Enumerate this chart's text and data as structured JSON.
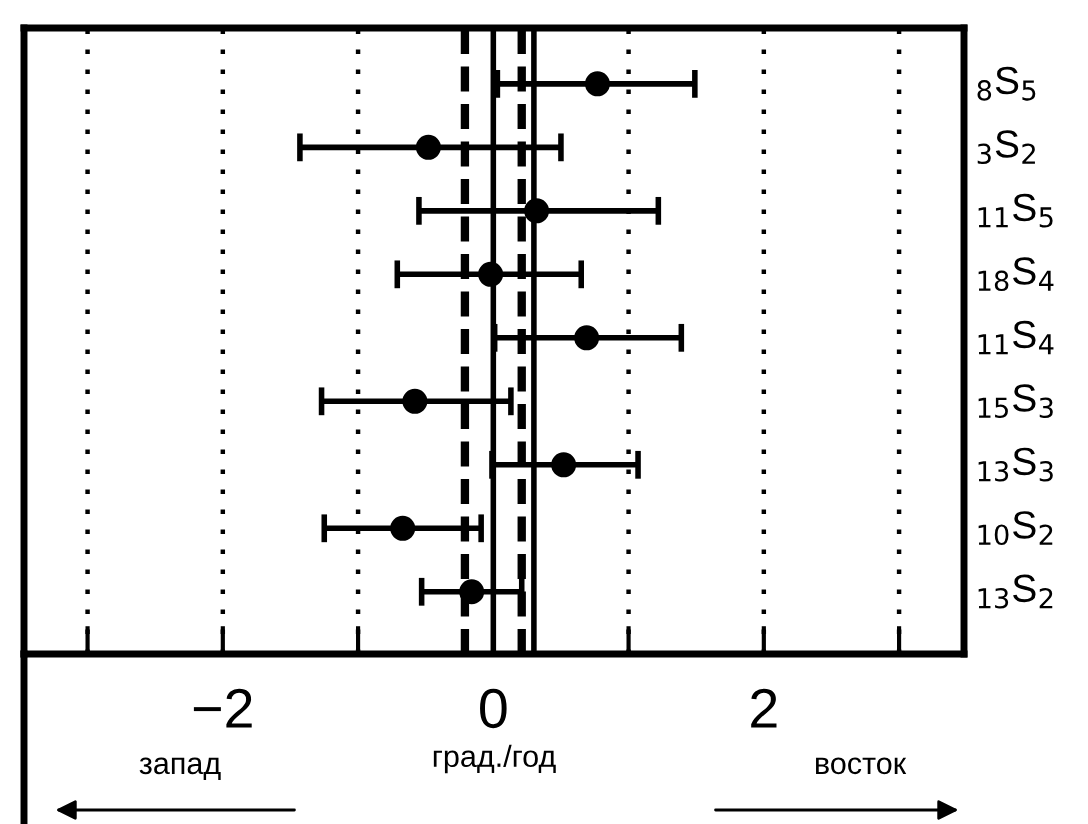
{
  "chart_data": {
    "type": "scatter",
    "orientation": "horizontal",
    "xlabel": "град./год",
    "categories": [
      "$_{8}$S$_{5}$",
      "$_{3}$S$_{2}$",
      "$_{11}$S$_{5}$",
      "$_{18}$S$_{4}$",
      "$_{11}$S$_{4}$",
      "$_{15}$S$_{3}$",
      "$_{13}$S$_{3}$",
      "$_{10}$S$_{2}$",
      "$_{13}$S$_{2}$"
    ],
    "values": [
      0.77,
      -0.48,
      0.32,
      -0.02,
      0.69,
      -0.58,
      0.52,
      -0.67,
      -0.16
    ],
    "errors": [
      [
        0.03,
        1.49
      ],
      [
        -1.43,
        0.5
      ],
      [
        -0.55,
        1.22
      ],
      [
        -0.71,
        0.65
      ],
      [
        0.01,
        1.39
      ],
      [
        -1.27,
        0.13
      ],
      [
        -0.01,
        1.07
      ],
      [
        -1.25,
        -0.09
      ],
      [
        -0.53,
        0.21
      ]
    ],
    "color": "#000000",
    "marker": "circle",
    "xlim": [
      -3.47,
      3.48
    ],
    "xticks": [
      {
        "value": -3,
        "label": null
      },
      {
        "value": -2,
        "label": "−2"
      },
      {
        "value": -1,
        "label": null
      },
      0,
      {
        "value": 1,
        "label": null
      },
      2,
      {
        "value": 3,
        "label": null
      }
    ],
    "grid": "x",
    "ref_lines": [
      {
        "axis": "x",
        "value": 0,
        "line_style": "solid"
      },
      {
        "axis": "x",
        "value": -0.21,
        "line_style": "dashed"
      },
      {
        "axis": "x",
        "value": 0.21,
        "line_style": "dashed"
      },
      {
        "axis": "x",
        "value": 0.3,
        "line_style": "solid"
      }
    ],
    "annotations": [
      "запад",
      "восток"
    ]
  }
}
